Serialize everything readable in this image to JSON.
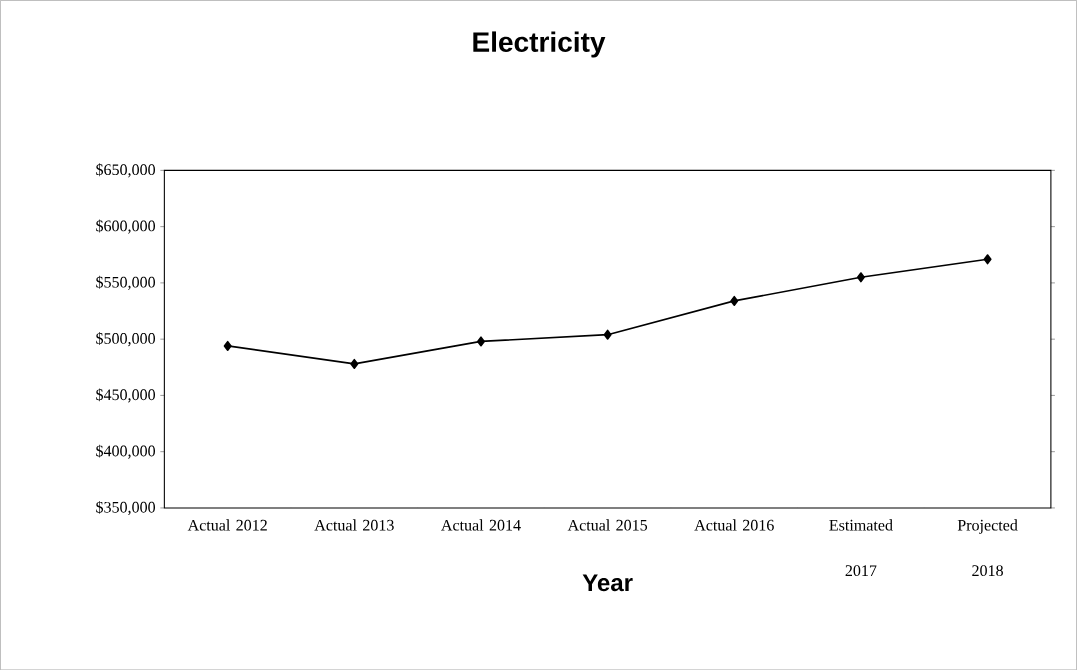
{
  "chart_data": {
    "type": "line",
    "title": "Electricity",
    "xlabel": "Year",
    "categories": [
      "Actual 2012",
      "Actual 2013",
      "Actual 2014",
      "Actual 2015",
      "Actual 2016",
      "Estimated 2017",
      "Projected 2018"
    ],
    "values": [
      494000,
      478000,
      498000,
      504000,
      534000,
      555000,
      571000
    ],
    "color": "#000000",
    "marker": "diamond",
    "ylim": [
      350000,
      650000
    ],
    "yticks": [
      {
        "value": 350000,
        "label": "$350,000"
      },
      {
        "value": 400000,
        "label": "$400,000"
      },
      {
        "value": 450000,
        "label": "$450,000"
      },
      {
        "value": 500000,
        "label": "$500,000"
      },
      {
        "value": 550000,
        "label": "$550,000"
      },
      {
        "value": 600000,
        "label": "$600,000"
      },
      {
        "value": 650000,
        "label": "$650,000"
      }
    ]
  }
}
